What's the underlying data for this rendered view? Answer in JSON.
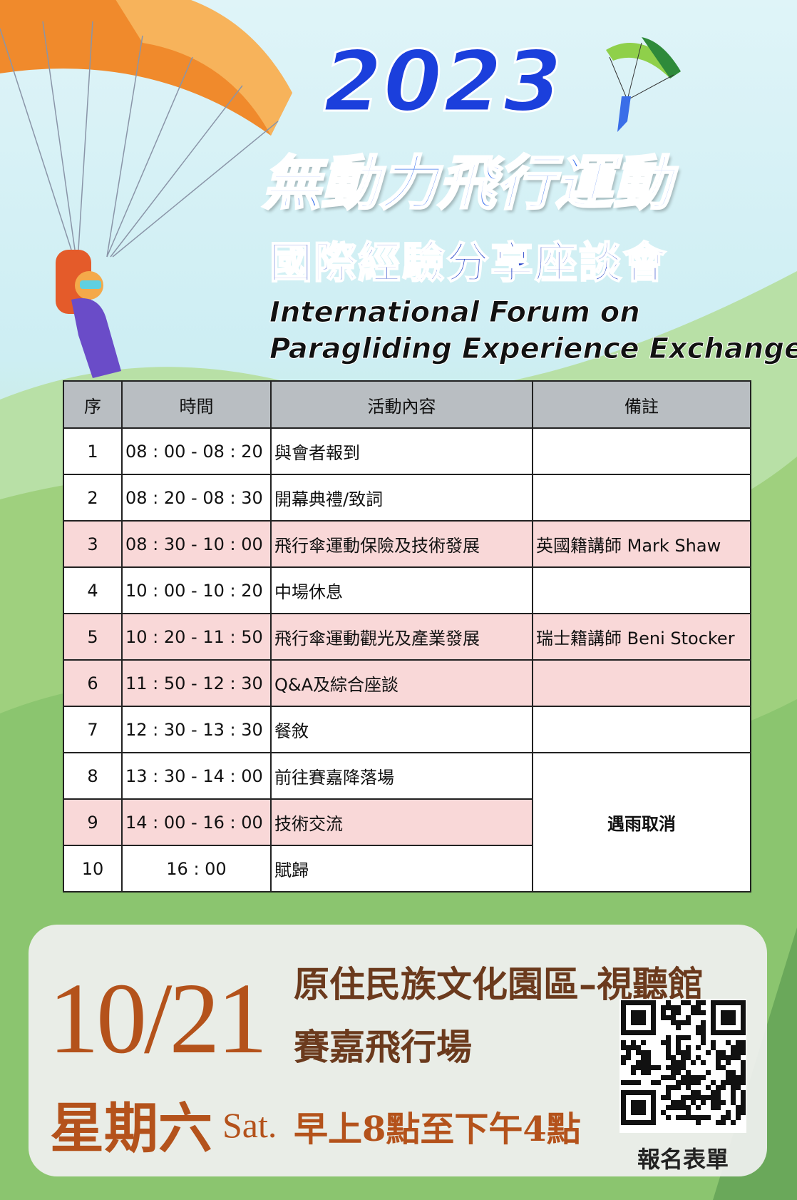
{
  "header": {
    "year": "2023",
    "title": "無動力飛行運動",
    "subtitle": "國際經驗分享座談會",
    "english": [
      "International Forum on",
      "Paragliding Experience Exchange"
    ]
  },
  "table": {
    "headers": [
      "序",
      "時間",
      "活動內容",
      "備註"
    ],
    "rows": [
      {
        "no": "1",
        "time": "08 : 00 - 08 : 20",
        "activity": "與會者報到"
      },
      {
        "no": "2",
        "time": "08 : 20 - 08 : 30",
        "activity": "開幕典禮/致詞"
      },
      {
        "no": "3",
        "time": "08 : 30 - 10 : 00",
        "activity": "飛行傘運動保險及技術發展",
        "note": "英國籍講師 Mark Shaw",
        "highlight": true
      },
      {
        "no": "4",
        "time": "10 : 00 - 10 : 20",
        "activity": "中場休息"
      },
      {
        "no": "5",
        "time": "10 : 20 - 11 : 50",
        "activity": "飛行傘運動觀光及產業發展",
        "note": "瑞士籍講師 Beni Stocker",
        "highlight": true
      },
      {
        "no": "6",
        "time": "11 : 50 - 12 : 30",
        "activity": "Q&A及綜合座談",
        "highlight": true
      },
      {
        "no": "7",
        "time": "12 : 30 - 13 : 30",
        "activity": "餐敘"
      },
      {
        "no": "8",
        "time": "13 : 30 - 14 : 00",
        "activity": "前往賽嘉降落場"
      },
      {
        "no": "9",
        "time": "14 : 00 - 16 : 00",
        "activity": "技術交流",
        "highlight": true
      },
      {
        "no": "10",
        "time": "16 : 00",
        "activity": "賦歸"
      }
    ],
    "merged_note": "遇雨取消"
  },
  "footer": {
    "date": "10/21",
    "venue": [
      "原住民族文化園區–視聽館",
      "賽嘉飛行場"
    ],
    "day": "星期六",
    "day_en": "Sat.",
    "hours": "早上8點至下午4點",
    "qr_label": "報名表單"
  }
}
